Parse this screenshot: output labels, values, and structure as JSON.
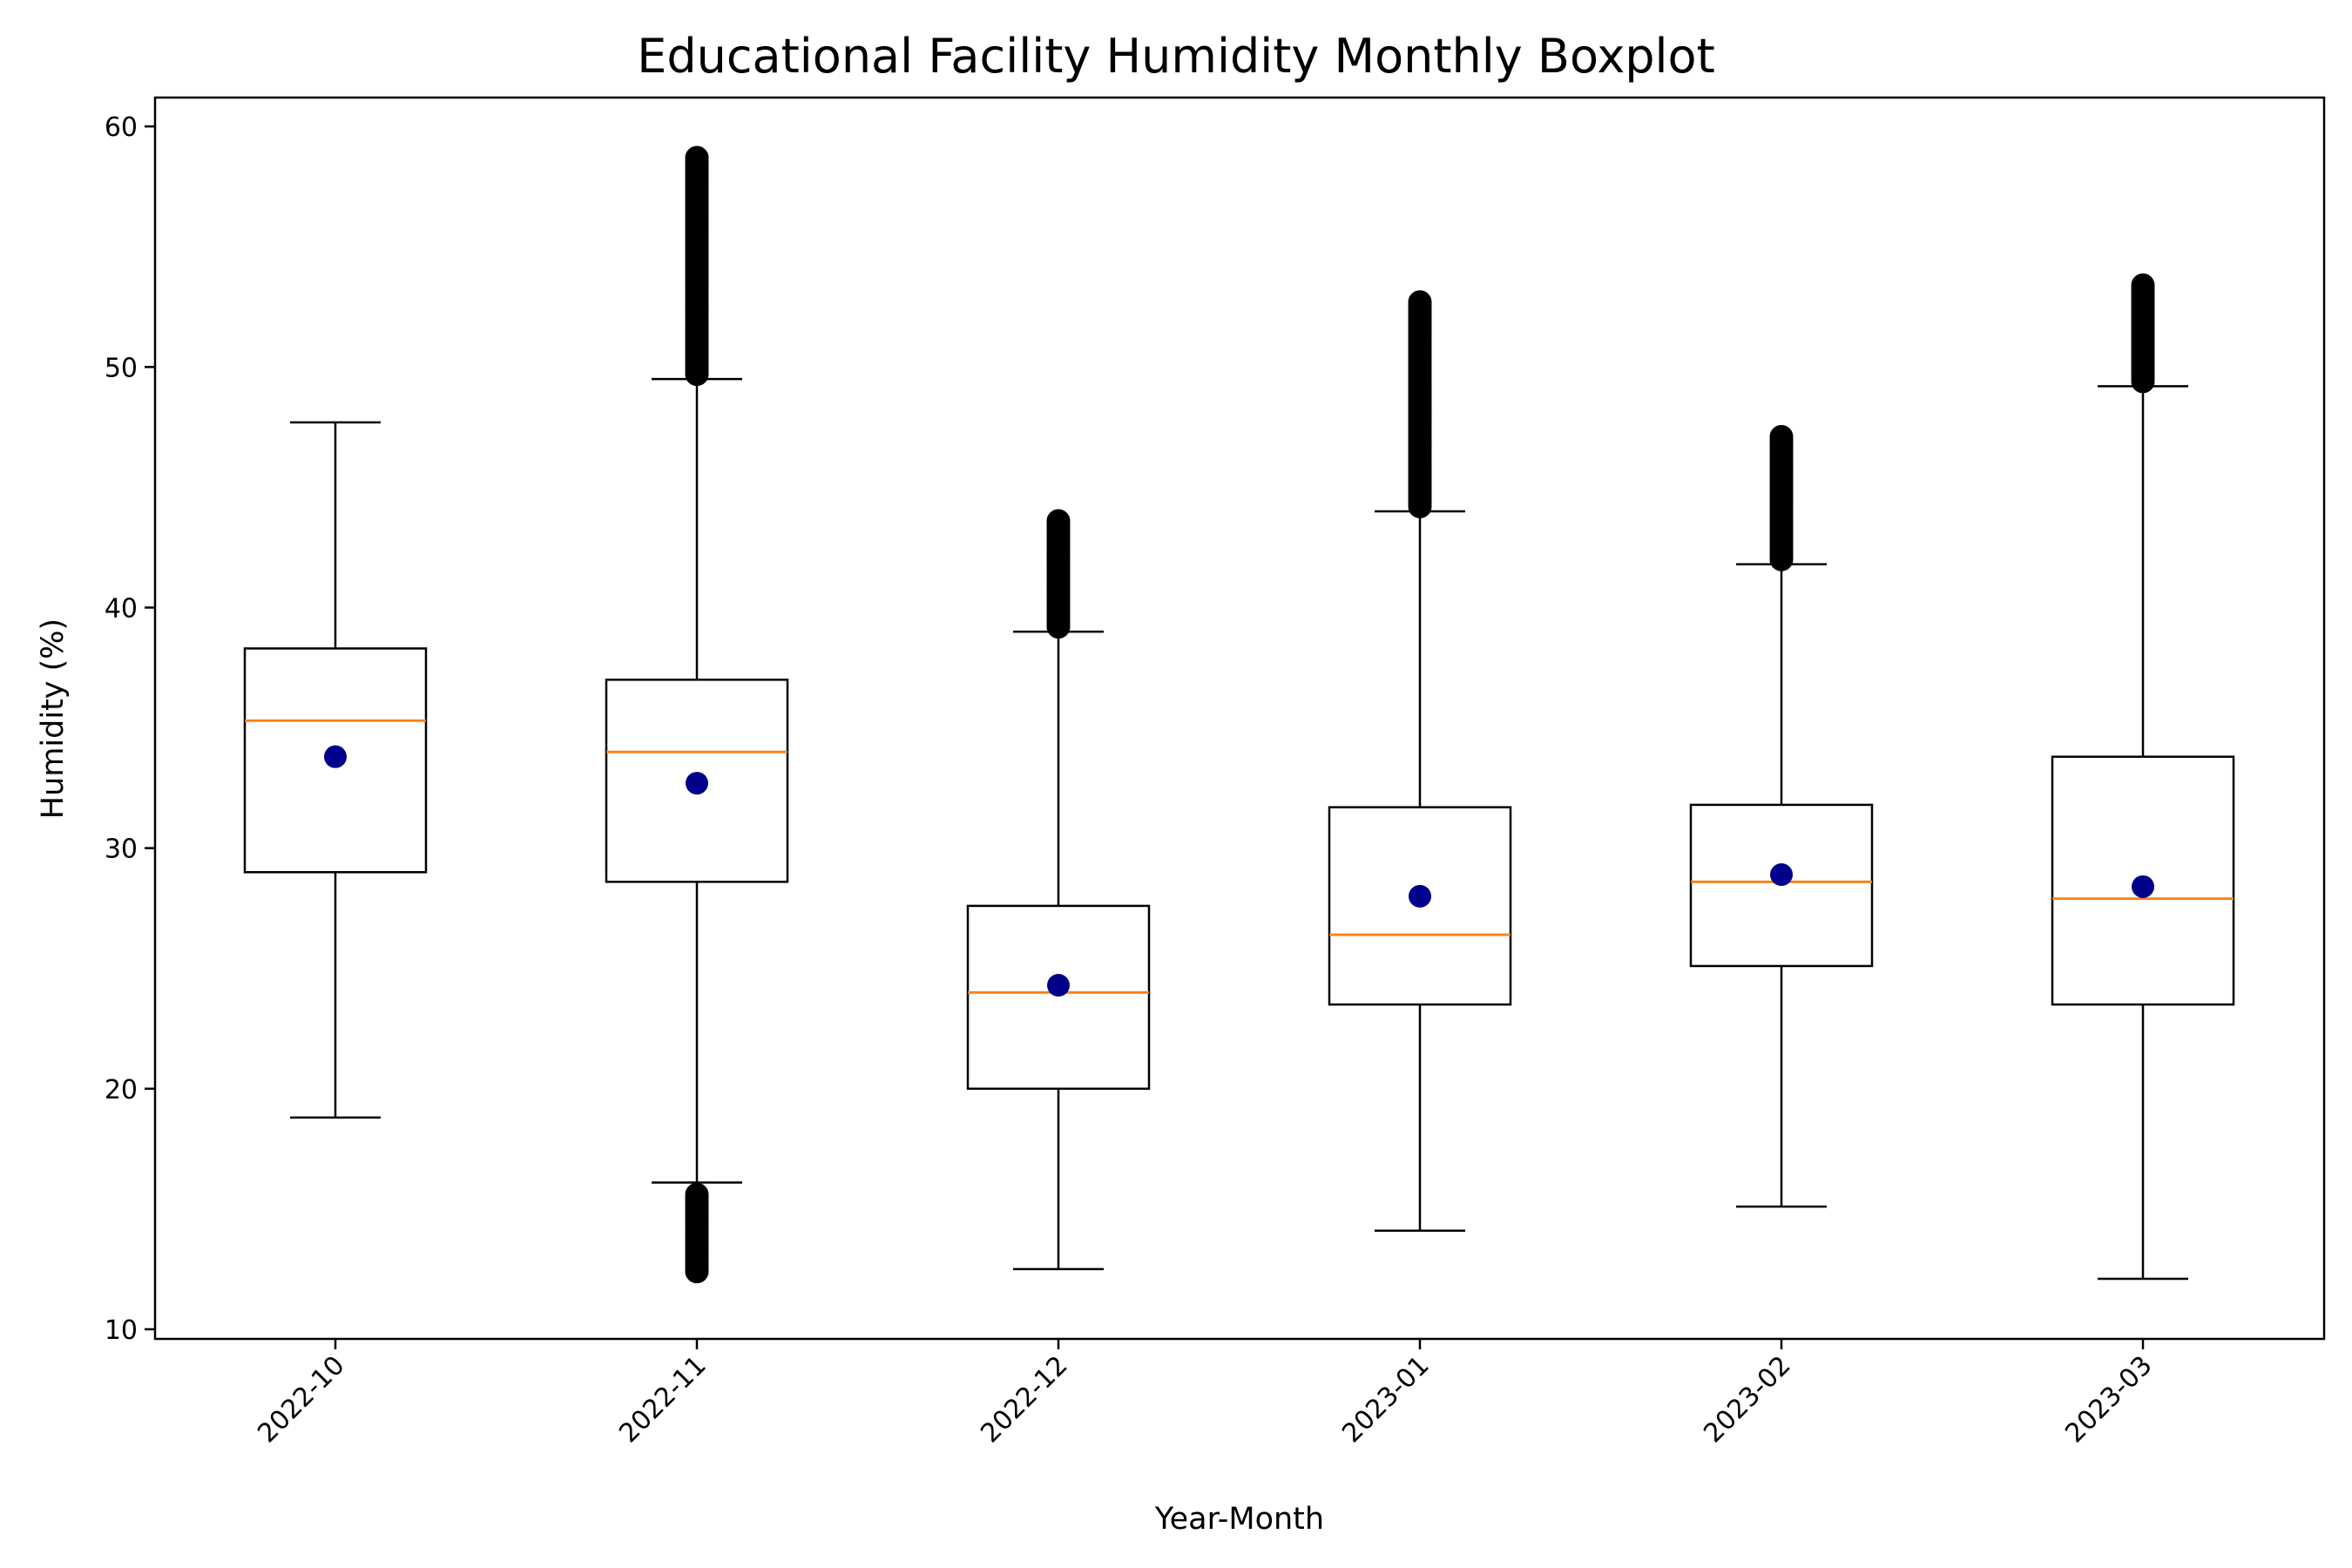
{
  "chart_data": {
    "type": "boxplot",
    "title": "Educational Facility Humidity Monthly Boxplot",
    "xlabel": "Year-Month",
    "ylabel": "Humidity (%)",
    "ylim": [
      9.6,
      61.2
    ],
    "yticks": [
      10,
      20,
      30,
      40,
      50,
      60
    ],
    "grid": false,
    "categories": [
      "2022-10",
      "2022-11",
      "2022-12",
      "2023-01",
      "2023-02",
      "2023-03"
    ],
    "boxes": [
      {
        "category": "2022-10",
        "whisker_low": 18.8,
        "q1": 29.0,
        "median": 35.3,
        "q3": 38.3,
        "whisker_high": 47.7,
        "mean": 33.8,
        "outliers_low": [],
        "outliers_high": []
      },
      {
        "category": "2022-11",
        "whisker_low": 16.1,
        "q1": 28.6,
        "median": 34.0,
        "q3": 37.0,
        "whisker_high": 49.5,
        "mean": 32.7,
        "outliers_low": [
          12.4,
          13.5,
          14.6,
          15.6
        ],
        "outliers_high": [
          49.7,
          51.5,
          53.5,
          55.5,
          57.5,
          58.7
        ]
      },
      {
        "category": "2022-12",
        "whisker_low": 12.5,
        "q1": 20.0,
        "median": 24.0,
        "q3": 27.6,
        "whisker_high": 39.0,
        "mean": 24.3,
        "outliers_low": [],
        "outliers_high": [
          39.2,
          40.5,
          42.0,
          43.6
        ]
      },
      {
        "category": "2023-01",
        "whisker_low": 14.1,
        "q1": 23.5,
        "median": 26.4,
        "q3": 31.7,
        "whisker_high": 44.0,
        "mean": 28.0,
        "outliers_low": [],
        "outliers_high": [
          44.2,
          46.0,
          48.0,
          50.0,
          52.7
        ]
      },
      {
        "category": "2023-02",
        "whisker_low": 15.1,
        "q1": 25.1,
        "median": 28.6,
        "q3": 31.8,
        "whisker_high": 41.8,
        "mean": 28.9,
        "outliers_low": [],
        "outliers_high": [
          42.0,
          43.8,
          45.5,
          47.1
        ]
      },
      {
        "category": "2023-03",
        "whisker_low": 12.1,
        "q1": 23.5,
        "median": 27.9,
        "q3": 33.8,
        "whisker_high": 49.2,
        "mean": 28.4,
        "outliers_low": [],
        "outliers_high": [
          49.4,
          51.0,
          52.5,
          53.4
        ]
      }
    ],
    "colors": {
      "box": "#000000",
      "median": "#ff7f0e",
      "mean": "#00008b",
      "outlier": "#000000"
    }
  }
}
